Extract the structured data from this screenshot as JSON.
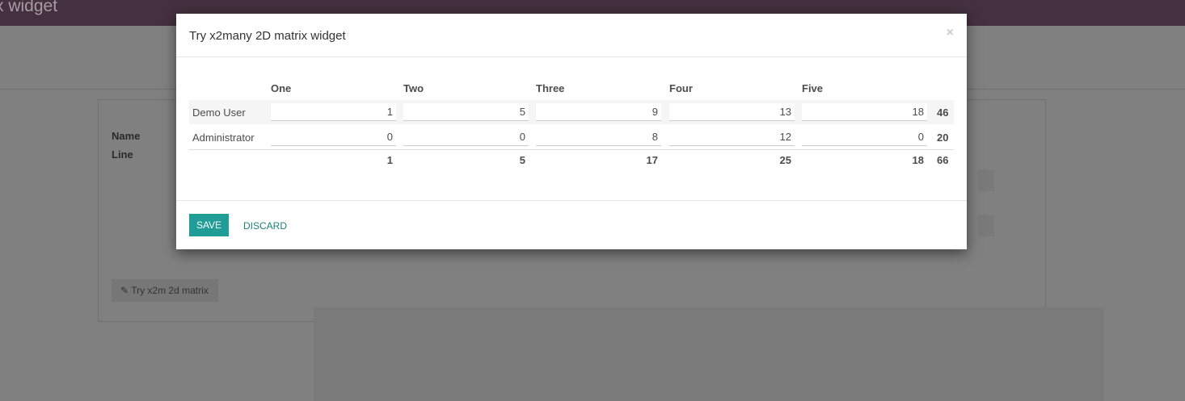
{
  "app": {
    "title": "x widget"
  },
  "form": {
    "name_label": "Name",
    "line_label": "Line",
    "try_button": "Try x2m 2d matrix"
  },
  "modal": {
    "title": "Try x2many 2D matrix widget",
    "close": "×",
    "columns": [
      "One",
      "Two",
      "Three",
      "Four",
      "Five"
    ],
    "rows": [
      {
        "label": "Demo User",
        "values": [
          "1",
          "5",
          "9",
          "13",
          "18"
        ],
        "total": "46"
      },
      {
        "label": "Administrator",
        "values": [
          "0",
          "0",
          "8",
          "12",
          "0"
        ],
        "total": "20"
      }
    ],
    "column_totals": [
      "1",
      "5",
      "17",
      "25",
      "18"
    ],
    "grand_total": "66",
    "save": "SAVE",
    "discard": "DISCARD"
  },
  "colors": {
    "accent": "#1f9d96",
    "topbar": "#44303e"
  }
}
